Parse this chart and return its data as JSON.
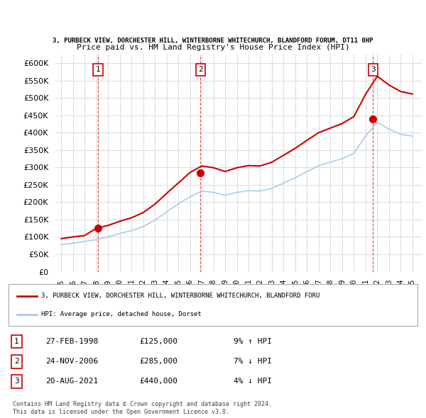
{
  "title_line1": "3, PURBECK VIEW, DORCHESTER HILL, WINTERBORNE WHITECHURCH, BLANDFORD FORUM, DT11 0HP",
  "title_line2": "Price paid vs. HM Land Registry's House Price Index (HPI)",
  "ylabel": "",
  "ylim": [
    0,
    625000
  ],
  "yticks": [
    0,
    50000,
    100000,
    150000,
    200000,
    250000,
    300000,
    350000,
    400000,
    450000,
    500000,
    550000,
    600000
  ],
  "sale_dates": [
    1998.15,
    2006.9,
    2021.63
  ],
  "sale_prices": [
    125000,
    285000,
    440000
  ],
  "sale_labels": [
    "1",
    "2",
    "3"
  ],
  "hpi_years": [
    1995,
    1996,
    1997,
    1998,
    1999,
    2000,
    2001,
    2002,
    2003,
    2004,
    2005,
    2006,
    2007,
    2008,
    2009,
    2010,
    2011,
    2012,
    2013,
    2014,
    2015,
    2016,
    2017,
    2018,
    2019,
    2020,
    2021,
    2022,
    2023,
    2024,
    2025
  ],
  "hpi_values": [
    78000,
    82000,
    87000,
    92000,
    100000,
    110000,
    118000,
    130000,
    148000,
    172000,
    195000,
    215000,
    232000,
    228000,
    220000,
    228000,
    233000,
    232000,
    240000,
    255000,
    270000,
    288000,
    305000,
    315000,
    325000,
    340000,
    390000,
    430000,
    410000,
    395000,
    390000
  ],
  "price_paid_years": [
    1995,
    1996,
    1997,
    1998,
    1999,
    2000,
    2001,
    2002,
    2003,
    2004,
    2005,
    2006,
    2007,
    2008,
    2009,
    2010,
    2011,
    2012,
    2013,
    2014,
    2015,
    2016,
    2017,
    2018,
    2019,
    2020,
    2021,
    2022,
    2023,
    2024,
    2025
  ],
  "price_paid_values": [
    95000,
    100000,
    104000,
    125000,
    133000,
    145000,
    155000,
    170000,
    194000,
    225000,
    255000,
    285000,
    304000,
    299000,
    288000,
    299000,
    305000,
    304000,
    315000,
    335000,
    355000,
    378000,
    400000,
    413000,
    426000,
    446000,
    510000,
    562000,
    537000,
    518000,
    511000
  ],
  "red_color": "#cc0000",
  "blue_color": "#aaccee",
  "legend_red_label": "3, PURBECK VIEW, DORCHESTER HILL, WINTERBORNE WHITECHURCH, BLANDFORD FORU",
  "legend_blue_label": "HPI: Average price, detached house, Dorset",
  "table_data": [
    [
      "1",
      "27-FEB-1998",
      "£125,000",
      "9% ↑ HPI"
    ],
    [
      "2",
      "24-NOV-2006",
      "£285,000",
      "7% ↓ HPI"
    ],
    [
      "3",
      "20-AUG-2021",
      "£440,000",
      "4% ↓ HPI"
    ]
  ],
  "footnote": "Contains HM Land Registry data © Crown copyright and database right 2024.\nThis data is licensed under the Open Government Licence v3.0.",
  "bg_color": "#ffffff",
  "grid_color": "#dddddd",
  "xlim_start": 1994.5,
  "xlim_end": 2025.8
}
